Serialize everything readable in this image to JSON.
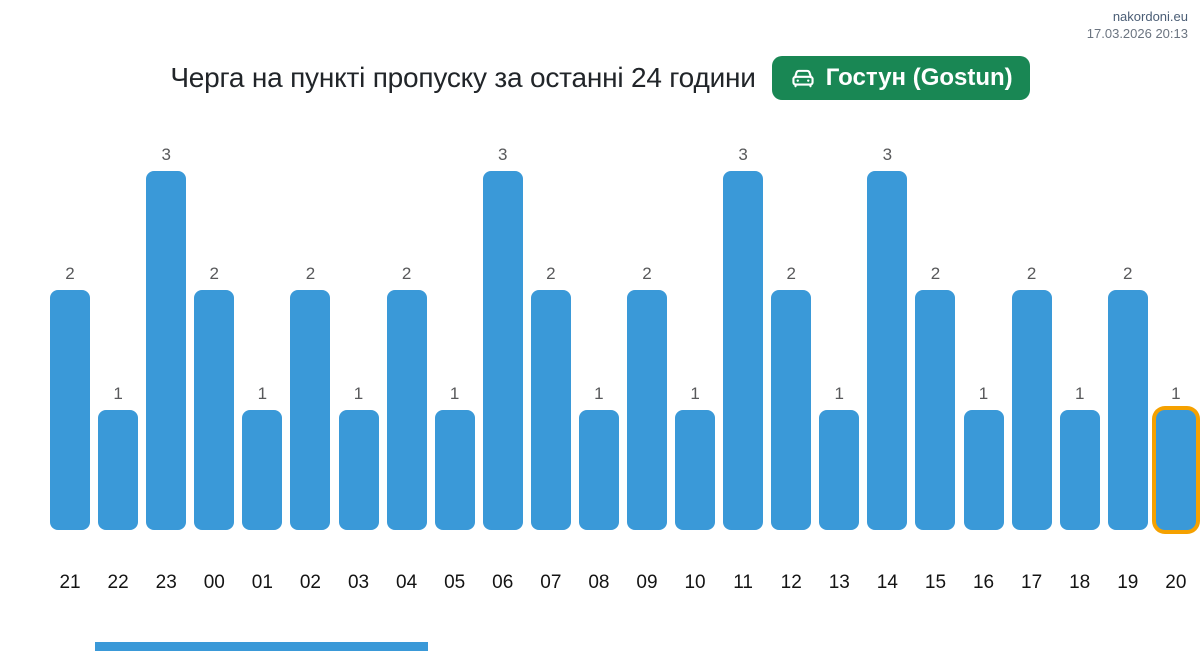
{
  "site_header": {
    "domain": "nakordoni.eu",
    "timestamp": "17.03.2026 20:13"
  },
  "header": {
    "title": "Черга на пункті пропуску за останні 24 години",
    "checkpoint_badge": {
      "label": "Гостун (Gostun)",
      "icon": "car-front-icon"
    }
  },
  "chart_data": {
    "type": "bar",
    "title": "Черга на пункті пропуску за останні 24 години",
    "categories": [
      "21",
      "22",
      "23",
      "00",
      "01",
      "02",
      "03",
      "04",
      "05",
      "06",
      "07",
      "08",
      "09",
      "10",
      "11",
      "12",
      "13",
      "14",
      "15",
      "16",
      "17",
      "18",
      "19",
      "20"
    ],
    "values": [
      2,
      1,
      3,
      2,
      1,
      2,
      1,
      2,
      1,
      3,
      2,
      1,
      2,
      1,
      3,
      2,
      1,
      3,
      2,
      1,
      2,
      1,
      2,
      1
    ],
    "xlabel": "",
    "ylabel": "",
    "ylim": [
      0,
      3.3
    ],
    "grid": false,
    "legend": false,
    "value_labels_shown": true,
    "bar_color": "#3a99d8",
    "highlight": {
      "index": 23,
      "category": "20",
      "value": 1,
      "border_color": "#f5a100"
    }
  },
  "colors": {
    "badge_bg": "#198754",
    "bar": "#3a99d8",
    "highlight_border": "#f5a100",
    "title_text": "#212529",
    "value_label_text": "#58595b",
    "hour_label_text": "#141414",
    "domain_text": "#4a5d75",
    "timestamp_text": "#6b7480",
    "bottom_strip": "#3a99d8"
  },
  "bottom_strip": {
    "visible": true,
    "color": "#3a99d8"
  }
}
